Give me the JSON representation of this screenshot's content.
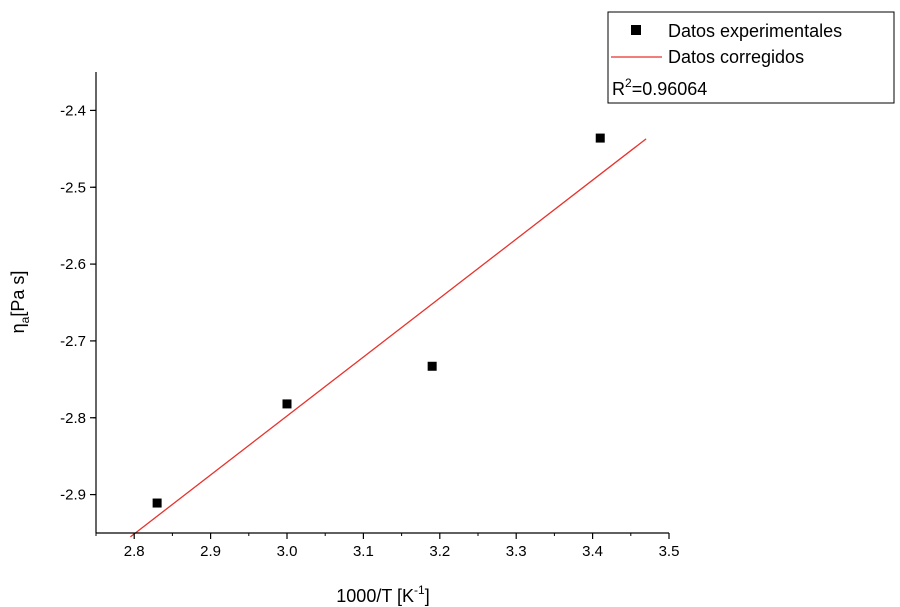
{
  "chart_data": {
    "type": "scatter",
    "xlabel": {
      "base": "1000/T [K",
      "sup": "-1",
      "tail": "]"
    },
    "ylabel": {
      "base": "η",
      "sub": "a",
      "tail": "[Pa s]"
    },
    "xlim": [
      2.75,
      3.5
    ],
    "ylim": [
      -2.95,
      -2.35
    ],
    "x_ticks": [
      2.8,
      2.9,
      3.0,
      3.1,
      3.2,
      3.3,
      3.4,
      3.5
    ],
    "x_tick_labels": [
      "2.8",
      "2.9",
      "3.0",
      "3.1",
      "3.2",
      "3.3",
      "3.4",
      "3.5"
    ],
    "y_ticks": [
      -2.9,
      -2.8,
      -2.7,
      -2.6,
      -2.5,
      -2.4
    ],
    "y_tick_labels": [
      "-2.9",
      "-2.8",
      "-2.7",
      "-2.6",
      "-2.5",
      "-2.4"
    ],
    "grid": false,
    "legend_position": "top-right",
    "series": [
      {
        "name": "Datos experimentales",
        "kind": "scatter",
        "marker": "square",
        "color": "#000000",
        "x": [
          2.83,
          3.0,
          3.19,
          3.41
        ],
        "y": [
          -2.911,
          -2.782,
          -2.733,
          -2.436
        ]
      },
      {
        "name": "Datos corregidos",
        "kind": "line",
        "color": "#e8322c",
        "x": [
          2.795,
          3.47
        ],
        "y": [
          -2.955,
          -2.437
        ]
      }
    ],
    "annotation": {
      "base": "R",
      "sup": "2",
      "tail": "=0.96064"
    }
  }
}
